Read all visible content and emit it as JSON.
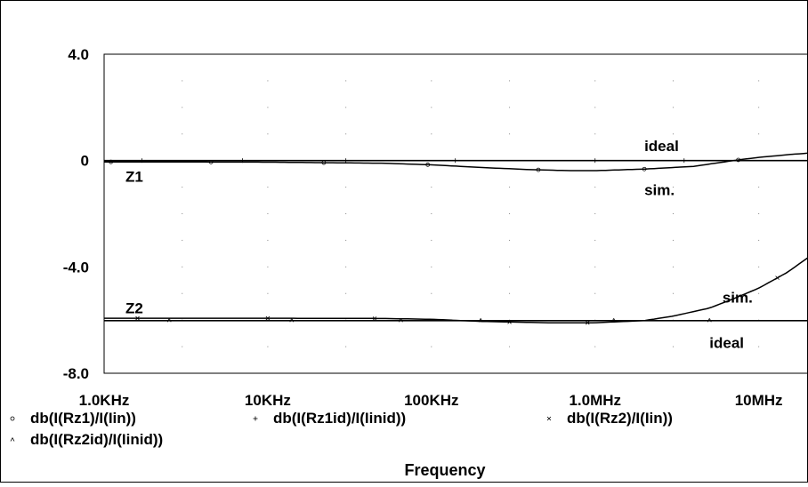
{
  "chart_data": {
    "type": "line",
    "xlabel": "Frequency",
    "ylabel": "",
    "x_scale": "log",
    "xlim": [
      1000,
      20000000
    ],
    "ylim": [
      -8.0,
      4.0
    ],
    "grid": "dotted",
    "x_ticks": [
      {
        "value": 1000,
        "label": "1.0KHz"
      },
      {
        "value": 10000,
        "label": "10KHz"
      },
      {
        "value": 100000,
        "label": "100KHz"
      },
      {
        "value": 1000000,
        "label": "1.0MHz"
      },
      {
        "value": 10000000,
        "label": "10MHz"
      }
    ],
    "y_ticks": [
      {
        "value": 4.0,
        "label": "4.0"
      },
      {
        "value": 0,
        "label": "0"
      },
      {
        "value": -4.0,
        "label": "-4.0"
      },
      {
        "value": -8.0,
        "label": "-8.0"
      }
    ],
    "series": [
      {
        "name": "db(I(Rz1)/I(Iin))",
        "marker": "circle",
        "points": [
          [
            1000,
            -0.05
          ],
          [
            10000,
            -0.06
          ],
          [
            50000,
            -0.1
          ],
          [
            100000,
            -0.16
          ],
          [
            200000,
            -0.26
          ],
          [
            400000,
            -0.34
          ],
          [
            700000,
            -0.38
          ],
          [
            1000000,
            -0.38
          ],
          [
            2000000,
            -0.32
          ],
          [
            4000000,
            -0.22
          ],
          [
            7000000,
            0.0
          ],
          [
            10000000,
            0.12
          ],
          [
            15000000,
            0.22
          ],
          [
            20000000,
            0.28
          ]
        ]
      },
      {
        "name": "db(I(Rz1id)/I(Iinid))",
        "marker": "plus",
        "points": [
          [
            1000,
            0.0
          ],
          [
            20000000,
            0.0
          ]
        ]
      },
      {
        "name": "db(I(Rz2)/I(Iin))",
        "marker": "x",
        "points": [
          [
            1000,
            -5.93
          ],
          [
            10000,
            -5.93
          ],
          [
            50000,
            -5.94
          ],
          [
            100000,
            -5.97
          ],
          [
            200000,
            -6.05
          ],
          [
            500000,
            -6.1
          ],
          [
            1000000,
            -6.1
          ],
          [
            2000000,
            -6.02
          ],
          [
            3000000,
            -5.85
          ],
          [
            5000000,
            -5.55
          ],
          [
            7000000,
            -5.2
          ],
          [
            10000000,
            -4.8
          ],
          [
            15000000,
            -4.2
          ],
          [
            20000000,
            -3.65
          ]
        ]
      },
      {
        "name": "db(I(Rz2id)/I(Iinid))",
        "marker": "triangle",
        "points": [
          [
            1000,
            -6.02
          ],
          [
            20000000,
            -6.02
          ]
        ]
      }
    ],
    "annotations": [
      {
        "text": "ideal",
        "x": 2000000,
        "y": 0.55
      },
      {
        "text": "Z1",
        "x": 1350,
        "y": -0.6
      },
      {
        "text": "sim.",
        "x": 2000000,
        "y": -1.1
      },
      {
        "text": "Z2",
        "x": 1350,
        "y": -5.55
      },
      {
        "text": "sim.",
        "x": 6000000,
        "y": -5.15
      },
      {
        "text": "ideal",
        "x": 5000000,
        "y": -6.85
      }
    ]
  }
}
